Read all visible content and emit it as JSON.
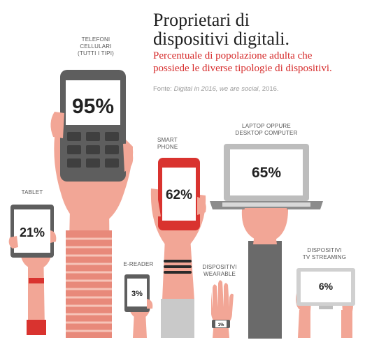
{
  "header": {
    "title_line1": "Proprietari di",
    "title_line2": "dispositivi digitali.",
    "subtitle_line1": "Percentuale di popolazione adulta che",
    "subtitle_line2": "possiede le diverse tipologie di dispositivi.",
    "source_prefix": "Fonte: ",
    "source_italic": "Digital in 2016, we are social",
    "source_suffix": ", 2016."
  },
  "colors": {
    "skin": "#f2a696",
    "skin_dark": "#e8897a",
    "device_gray": "#5e5e5e",
    "device_red": "#d9332f",
    "accent_red": "#d62b2b"
  },
  "chart_data": {
    "type": "bar",
    "categories": [
      "Telefoni cellulari (tutti i tipi)",
      "Laptop oppure desktop computer",
      "Smart phone",
      "Tablet",
      "Dispositivi TV streaming",
      "E-reader",
      "Dispositivi wearable"
    ],
    "values": [
      95,
      65,
      62,
      21,
      6,
      3,
      1
    ],
    "value_labels": [
      "95%",
      "65%",
      "62%",
      "21%",
      "6%",
      "3%",
      "1%"
    ],
    "device_labels": {
      "phone": [
        "TELEFONI",
        "CELLULARI",
        "(TUTTI I TIPI)"
      ],
      "tablet": [
        "TABLET"
      ],
      "smartphone": [
        "SMART",
        "PHONE"
      ],
      "laptop": [
        "LAPTOP OPPURE",
        "DESKTOP COMPUTER"
      ],
      "ereader": [
        "E-READER"
      ],
      "wearable": [
        "DISPOSITIVI",
        "WEARABLE"
      ],
      "tv": [
        "DISPOSITIVI",
        "TV STREAMING"
      ]
    },
    "title": "Proprietari di dispositivi digitali.",
    "subtitle": "Percentuale di popolazione adulta che possiede le diverse tipologie di dispositivi."
  }
}
